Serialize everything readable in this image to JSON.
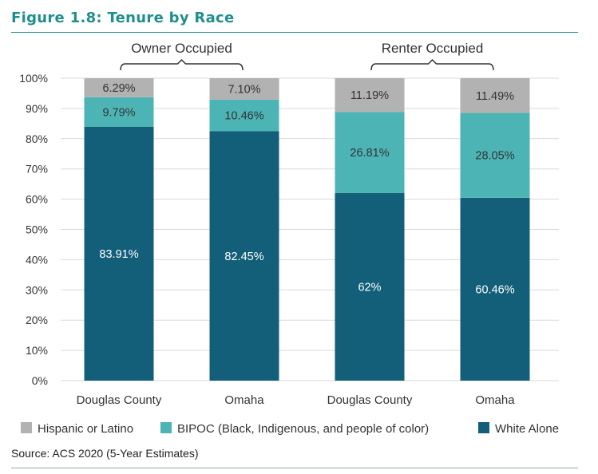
{
  "figure_title": "Figure 1.8: Tenure by Race",
  "source": "Source: ACS 2020 (5-Year Estimates)",
  "colors": {
    "title": "#1f8f8d",
    "hispanic": "#b2b2b2",
    "bipoc": "#4db4b6",
    "white": "#135f79",
    "grid": "#d9d9d9"
  },
  "chart_data": {
    "type": "bar",
    "stacked": true,
    "groups": [
      {
        "label": "Owner Occupied",
        "categories": [
          0,
          1
        ]
      },
      {
        "label": "Renter Occupied",
        "categories": [
          2,
          3
        ]
      }
    ],
    "categories": [
      "Douglas County",
      "Omaha",
      "Douglas County",
      "Omaha"
    ],
    "series": [
      {
        "name": "White Alone",
        "color": "#135f79",
        "values": [
          83.91,
          82.45,
          62,
          60.46
        ],
        "labels": [
          "83.91%",
          "82.45%",
          "62%",
          "60.46%"
        ]
      },
      {
        "name": "BIPOC (Black, Indigenous, and people of color)",
        "color": "#4db4b6",
        "values": [
          9.79,
          10.46,
          26.81,
          28.05
        ],
        "labels": [
          "9.79%",
          "10.46%",
          "26.81%",
          "28.05%"
        ]
      },
      {
        "name": "Hispanic or Latino",
        "color": "#b2b2b2",
        "values": [
          6.29,
          7.1,
          11.19,
          11.49
        ],
        "labels": [
          "6.29%",
          "7.10%",
          "11.19%",
          "11.49%"
        ]
      }
    ],
    "legend": [
      "Hispanic or Latino",
      "BIPOC (Black, Indigenous, and people of color)",
      "White Alone"
    ],
    "yticks": [
      "0%",
      "10%",
      "20%",
      "30%",
      "40%",
      "50%",
      "60%",
      "70%",
      "80%",
      "90%",
      "100%"
    ],
    "ylim": [
      0,
      100
    ],
    "grid": true,
    "legend_position": "bottom"
  }
}
